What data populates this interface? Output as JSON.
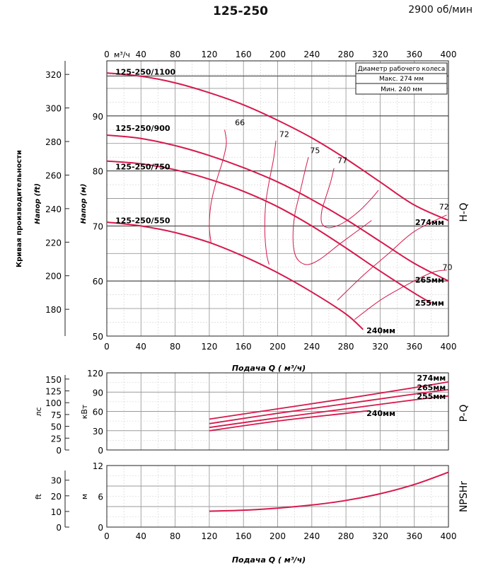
{
  "header": {
    "title": "125-250",
    "speed": "2900 об/мин"
  },
  "chart_data": [
    {
      "type": "line",
      "name": "H-Q",
      "side_label": "H-Q",
      "xlabel": "Подача Q ( м³/ч)",
      "x_top_unit": "м³/ч",
      "xlim": [
        0,
        400
      ],
      "xticks": [
        0,
        40,
        80,
        120,
        160,
        200,
        240,
        280,
        320,
        360,
        400
      ],
      "ylabel_m": "Напор (м)",
      "ylim_m": [
        50,
        100
      ],
      "yticks_m": [
        50,
        60,
        70,
        80,
        90
      ],
      "ylabel_ft": "Напор (ft)",
      "yticks_ft": [
        180,
        200,
        220,
        240,
        260,
        280,
        300,
        320
      ],
      "side_vertical_text": "Кривая производительности",
      "legend": {
        "title": "Диаметр рабочего колеса",
        "max": "Макс. 274  мм",
        "min": "Мин.  240  мм"
      },
      "model_labels": [
        {
          "text": "125-250/1100",
          "x": 10,
          "y": 97.5
        },
        {
          "text": "125-250/900",
          "x": 10,
          "y": 87.3
        },
        {
          "text": "125-250/750",
          "x": 10,
          "y": 80.3
        },
        {
          "text": "125-250/550",
          "x": 10,
          "y": 70.5
        }
      ],
      "series": [
        {
          "name": "274мм",
          "x": [
            0,
            40,
            80,
            120,
            160,
            200,
            240,
            280,
            320,
            360,
            400
          ],
          "y": [
            97.8,
            97.2,
            96.0,
            94.2,
            92.0,
            89.2,
            86.0,
            82.2,
            78.0,
            73.8,
            71.0
          ]
        },
        {
          "name": "265мм",
          "x": [
            0,
            40,
            80,
            120,
            160,
            200,
            240,
            280,
            320,
            360,
            400
          ],
          "y": [
            86.5,
            85.9,
            84.6,
            82.8,
            80.6,
            78.0,
            74.8,
            71.2,
            67.2,
            63.2,
            60.0
          ]
        },
        {
          "name": "255мм",
          "x": [
            0,
            40,
            80,
            120,
            160,
            200,
            240,
            280,
            320,
            360,
            380
          ],
          "y": [
            81.8,
            81.3,
            80.2,
            78.5,
            76.3,
            73.5,
            70.0,
            66.0,
            61.8,
            57.8,
            56.0
          ]
        },
        {
          "name": "240мм",
          "x": [
            0,
            40,
            80,
            120,
            160,
            200,
            240,
            280,
            300
          ],
          "y": [
            70.7,
            70.0,
            68.8,
            67.0,
            64.5,
            61.5,
            58.0,
            54.0,
            51.2
          ]
        }
      ],
      "efficiency_labels": [
        {
          "text": "66",
          "x": 150,
          "y": 88.3
        },
        {
          "text": "72",
          "x": 202,
          "y": 86.2
        },
        {
          "text": "75",
          "x": 238,
          "y": 83.2
        },
        {
          "text": "77",
          "x": 270,
          "y": 81.4
        },
        {
          "text": "72",
          "x": 389,
          "y": 73.0
        },
        {
          "text": "70",
          "x": 393,
          "y": 62.0
        }
      ],
      "efficiency_contours": [
        {
          "x": [
            138,
            140,
            136,
            128,
            122,
            120,
            122
          ],
          "y": [
            87.5,
            85,
            82,
            78,
            74,
            70,
            67
          ]
        },
        {
          "x": [
            198,
            195,
            190,
            186,
            185,
            187,
            190
          ],
          "y": [
            85.5,
            82,
            78,
            74,
            69,
            65,
            63
          ]
        },
        {
          "x": [
            236,
            232,
            226,
            220,
            218,
            220,
            226,
            236,
            250,
            275,
            310
          ],
          "y": [
            82.5,
            80,
            76,
            72,
            68,
            65,
            63.5,
            63,
            64,
            67,
            71
          ]
        },
        {
          "x": [
            266,
            262,
            256,
            252,
            251,
            254,
            262,
            276,
            294,
            310,
            318
          ],
          "y": [
            80.5,
            78,
            75,
            73,
            71,
            70,
            69.7,
            70.5,
            72.5,
            75,
            76.5
          ]
        },
        {
          "x": [
            270,
            300,
            330,
            360,
            398
          ],
          "y": [
            56.5,
            61,
            65,
            69,
            72
          ]
        },
        {
          "x": [
            290,
            320,
            350,
            380,
            398
          ],
          "y": [
            53,
            56.5,
            59.2,
            61.5,
            62
          ]
        }
      ],
      "curve_labels": [
        {
          "text": "274мм",
          "x": 361,
          "y": 70.2
        },
        {
          "text": "265мм",
          "x": 361,
          "y": 59.7
        },
        {
          "text": "255мм",
          "x": 361,
          "y": 55.5
        },
        {
          "text": "240мм",
          "x": 304,
          "y": 50.5
        }
      ]
    },
    {
      "type": "line",
      "name": "P-Q",
      "side_label": "P-Q",
      "ylabel_kw": "кВт",
      "ylim_kw": [
        0,
        120
      ],
      "yticks_kw": [
        0,
        30,
        60,
        90,
        120
      ],
      "ylabel_hp": "лс",
      "yticks_hp": [
        0,
        25,
        50,
        75,
        100,
        125,
        150
      ],
      "series": [
        {
          "name": "274мм",
          "x": [
            120,
            200,
            280,
            360,
            400
          ],
          "y": [
            48,
            64,
            80,
            97,
            106
          ]
        },
        {
          "name": "265мм",
          "x": [
            120,
            200,
            280,
            360,
            400
          ],
          "y": [
            41,
            57,
            72,
            87,
            94
          ]
        },
        {
          "name": "255мм",
          "x": [
            120,
            200,
            280,
            360,
            400
          ],
          "y": [
            35,
            50,
            64,
            78,
            84
          ]
        },
        {
          "name": "240мм",
          "x": [
            120,
            200,
            280,
            305
          ],
          "y": [
            30,
            45,
            57,
            61
          ]
        }
      ],
      "curve_labels": [
        {
          "text": "274мм",
          "x": 363,
          "y": 108
        },
        {
          "text": "265мм",
          "x": 363,
          "y": 93
        },
        {
          "text": "255мм",
          "x": 363,
          "y": 79
        },
        {
          "text": "240мм",
          "x": 304,
          "y": 53
        }
      ]
    },
    {
      "type": "line",
      "name": "NPSHr",
      "side_label": "NPSHr",
      "xlabel": "Подача Q ( м³/ч)",
      "xlim": [
        0,
        400
      ],
      "xticks": [
        0,
        40,
        80,
        120,
        160,
        200,
        240,
        280,
        320,
        360,
        400
      ],
      "ylabel_m": "м",
      "ylim_m": [
        0,
        12
      ],
      "yticks_m": [
        0,
        6,
        12
      ],
      "ylabel_ft": "ft",
      "yticks_ft": [
        0,
        10,
        20,
        30
      ],
      "series": [
        {
          "name": "NPSHr",
          "x": [
            120,
            160,
            200,
            240,
            280,
            320,
            360,
            400
          ],
          "y": [
            3.1,
            3.3,
            3.7,
            4.3,
            5.2,
            6.5,
            8.3,
            10.7
          ]
        }
      ]
    }
  ]
}
